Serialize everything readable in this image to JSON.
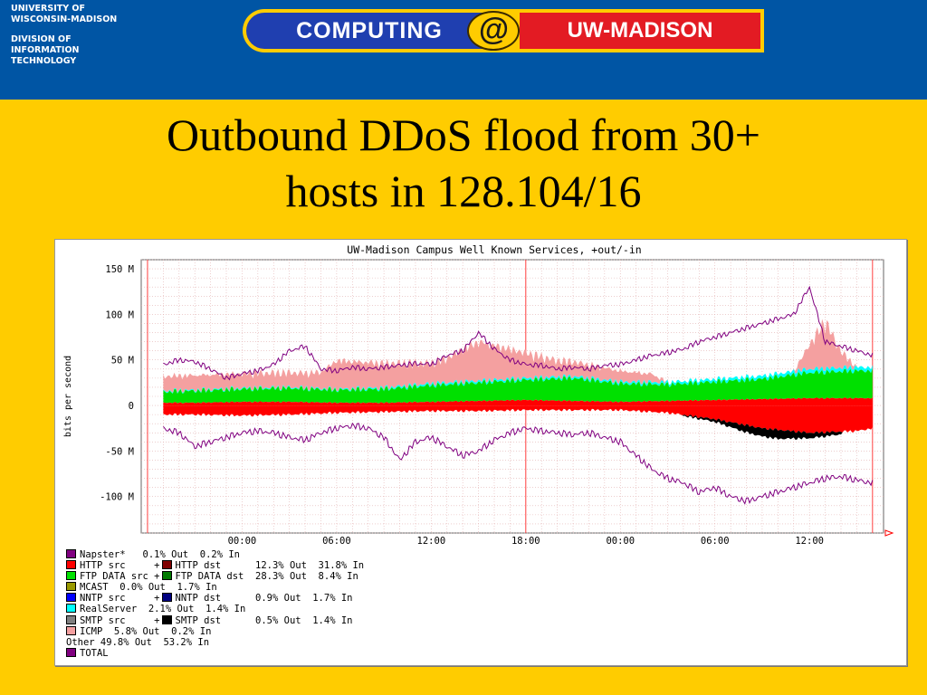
{
  "header": {
    "org_lines": [
      "UNIVERSITY OF",
      "WISCONSIN-MADISON"
    ],
    "dept_lines": [
      "DIVISION OF",
      "INFORMATION",
      "TECHNOLOGY"
    ],
    "banner_left": "COMPUTING",
    "banner_at": "@",
    "banner_right": "UW-MADISON"
  },
  "slide": {
    "title_line1": "Outbound DDoS flood from 30+",
    "title_line2": "hosts in 128.104/16"
  },
  "colors": {
    "http": "#ff0000",
    "ftp": "#00e000",
    "icmp": "#f4a0a0",
    "total": "#800080",
    "realserver": "#00ffff",
    "smtp": "#000000",
    "nntp": "#0000cc"
  },
  "chart_data": {
    "type": "area",
    "title": "UW-Madison Campus Well Known Services, +out/-in",
    "ylabel": "bits per second",
    "ylim": [
      -140,
      160
    ],
    "y_ticks": [
      150,
      100,
      50,
      0,
      -50,
      -100
    ],
    "y_tick_labels": [
      "150 M",
      "100 M",
      "50 M",
      "0",
      "-50 M",
      "-100 M"
    ],
    "x_tick_labels": [
      "00:00",
      "06:00",
      "12:00",
      "18:00",
      "00:00",
      "06:00",
      "12:00"
    ],
    "series": [
      {
        "name": "TOTAL",
        "x_hours": [
          -5,
          -4,
          -3,
          -2,
          -1,
          0,
          1,
          2,
          3,
          4,
          5,
          6,
          7,
          8,
          9,
          10,
          11,
          12,
          13,
          14,
          15,
          16,
          17,
          18,
          19,
          20,
          21,
          22,
          23,
          24,
          25,
          26,
          27,
          28,
          29,
          30,
          31,
          32,
          33,
          34,
          35,
          36,
          37,
          38,
          39,
          40
        ],
        "out": [
          45,
          50,
          48,
          40,
          30,
          35,
          38,
          45,
          60,
          65,
          40,
          38,
          42,
          40,
          42,
          44,
          46,
          45,
          55,
          60,
          80,
          62,
          50,
          45,
          44,
          40,
          42,
          40,
          44,
          45,
          50,
          55,
          58,
          62,
          70,
          75,
          80,
          85,
          90,
          95,
          100,
          130,
          70,
          65,
          60,
          55
        ],
        "in": [
          -25,
          -30,
          -45,
          -40,
          -35,
          -30,
          -28,
          -30,
          -35,
          -38,
          -30,
          -25,
          -22,
          -25,
          -35,
          -60,
          -40,
          -35,
          -45,
          -55,
          -50,
          -38,
          -30,
          -25,
          -28,
          -30,
          -32,
          -30,
          -35,
          -40,
          -55,
          -70,
          -80,
          -85,
          -95,
          -90,
          -100,
          -105,
          -100,
          -95,
          -90,
          -85,
          -80,
          -78,
          -82,
          -85
        ]
      },
      {
        "name": "ICMP",
        "x_hours": [
          4,
          5,
          6,
          12,
          13,
          14,
          15,
          20,
          21,
          26,
          27,
          28,
          29,
          30,
          31,
          32,
          33,
          34,
          35,
          36,
          37,
          38,
          39
        ],
        "out": [
          18,
          20,
          35,
          25,
          30,
          40,
          48,
          20,
          18,
          10,
          0,
          0,
          0,
          0,
          0,
          0,
          0,
          0,
          0,
          30,
          58,
          20,
          0
        ]
      },
      {
        "name": "FTP DATA src + FTP DATA dst",
        "x_hours": [
          -5,
          -3,
          0,
          3,
          6,
          9,
          12,
          15,
          18,
          21,
          24,
          27,
          30,
          33,
          36,
          39,
          40
        ],
        "out": [
          12,
          13,
          14,
          15,
          14,
          15,
          18,
          20,
          22,
          25,
          20,
          18,
          20,
          22,
          28,
          30,
          30
        ]
      },
      {
        "name": "HTTP src + HTTP dst",
        "x_hours": [
          -5,
          -3,
          0,
          3,
          6,
          9,
          12,
          15,
          18,
          21,
          24,
          27,
          30,
          33,
          36,
          39,
          40
        ],
        "out": [
          3,
          3,
          4,
          4,
          3,
          3,
          4,
          5,
          6,
          5,
          4,
          5,
          6,
          7,
          8,
          8,
          8
        ],
        "in": [
          -10,
          -10,
          -11,
          -10,
          -8,
          -7,
          -6,
          -6,
          -5,
          -5,
          -5,
          -8,
          -15,
          -25,
          -30,
          -28,
          -25
        ]
      },
      {
        "name": "RealServer",
        "x_hours": [
          -5,
          0,
          6,
          12,
          18,
          24,
          30,
          36,
          40
        ],
        "out": [
          1,
          1,
          1,
          2,
          2,
          2,
          3,
          4,
          4
        ]
      },
      {
        "name": "SMTP src + SMTP dst",
        "x_hours": [
          28,
          30,
          32,
          34,
          36,
          38
        ],
        "in": [
          -1,
          -3,
          -8,
          -10,
          -6,
          -3
        ]
      }
    ]
  },
  "legend": [
    {
      "label": "Napster*",
      "text": "Napster*   0.1% Out  0.2% In",
      "color": "#800080"
    },
    {
      "label": "HTTP src",
      "text": "HTTP src     +",
      "text2": "HTTP dst      12.3% Out  31.8% In",
      "color": "#ff0000",
      "color2": "#800000"
    },
    {
      "label": "FTP DATA src",
      "text": "FTP DATA src +",
      "text2": "FTP DATA dst  28.3% Out  8.4% In",
      "color": "#00e000",
      "color2": "#007a00"
    },
    {
      "label": "MCAST",
      "text": "MCAST  0.0% Out  1.7% In",
      "color": "#999900"
    },
    {
      "label": "NNTP src",
      "text": "NNTP src     +",
      "text2": "NNTP dst      0.9% Out  1.7% In",
      "color": "#0000ff",
      "color2": "#000080"
    },
    {
      "label": "RealServer",
      "text": "RealServer  2.1% Out  1.4% In",
      "color": "#00ffff"
    },
    {
      "label": "SMTP src",
      "text": "SMTP src     +",
      "text2": "SMTP dst      0.5% Out  1.4% In",
      "color": "#808080",
      "color2": "#000000"
    },
    {
      "label": "ICMP",
      "text": "ICMP  5.8% Out  0.2% In",
      "color": "#f4a0a0"
    },
    {
      "label": "Other",
      "text": "Other 49.8% Out  53.2% In",
      "color": ""
    },
    {
      "label": "TOTAL",
      "text": "TOTAL",
      "color": "#800080"
    }
  ]
}
